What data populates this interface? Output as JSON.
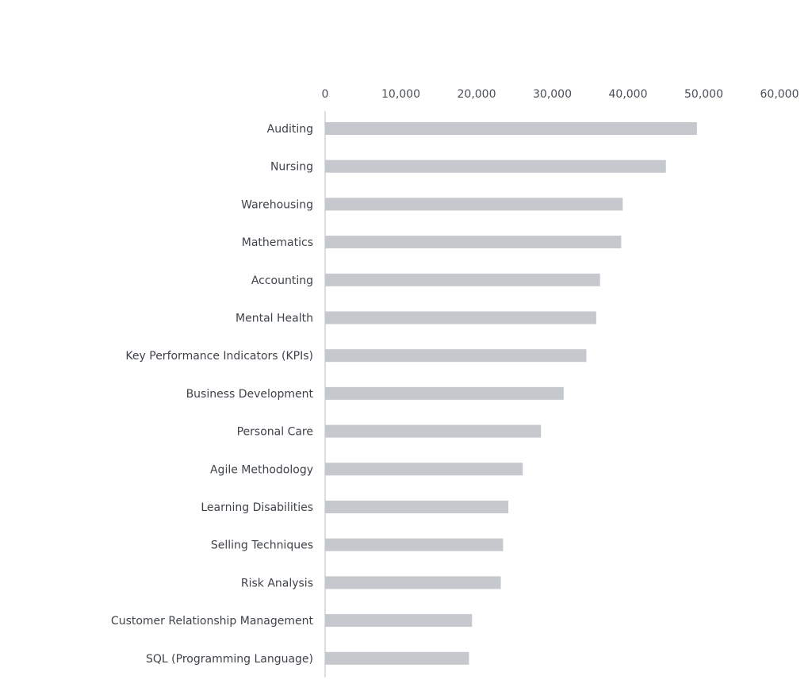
{
  "chart_data": {
    "type": "bar",
    "orientation": "horizontal",
    "title": "",
    "xlabel": "",
    "ylabel": "",
    "xlim": [
      0,
      60000
    ],
    "ticks": [
      "0",
      "10,000",
      "20,000",
      "30,000",
      "40,000",
      "50,000",
      "60,000"
    ],
    "tick_values": [
      0,
      10000,
      20000,
      30000,
      40000,
      50000,
      60000
    ],
    "axis_position": "top",
    "grid": false,
    "legend": "none",
    "bar_color": "#c5c8cc",
    "categories": [
      "Auditing",
      "Nursing",
      "Warehousing",
      "Mathematics",
      "Accounting",
      "Mental Health",
      "Key Performance Indicators (KPIs)",
      "Business Development",
      "Personal Care",
      "Agile Methodology",
      "Learning Disabilities",
      "Selling Techniques",
      "Risk Analysis",
      "Customer Relationship Management",
      "SQL (Programming Language)"
    ],
    "values": [
      49100,
      45000,
      39300,
      39100,
      36300,
      35800,
      34500,
      31500,
      28500,
      26100,
      24200,
      23500,
      23200,
      19400,
      19000
    ]
  }
}
